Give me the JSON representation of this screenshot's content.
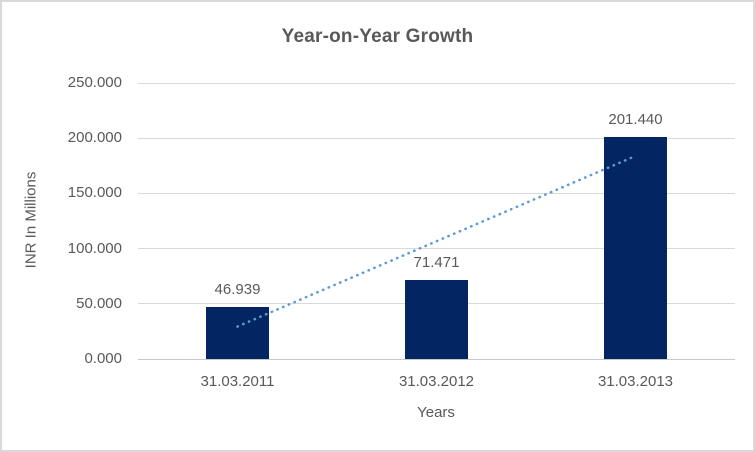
{
  "chart_data": {
    "type": "bar",
    "title": "Year-on-Year Growth",
    "xlabel": "Years",
    "ylabel": "INR In Millions",
    "categories": [
      "31.03.2011",
      "31.03.2012",
      "31.03.2013"
    ],
    "values": [
      46.939,
      71.471,
      201.44
    ],
    "data_labels": [
      "46.939",
      "71.471",
      "201.440"
    ],
    "series_name": "INR In Millions",
    "ylim": [
      0,
      250
    ],
    "y_ticks": [
      {
        "value": 0,
        "label": "0.000"
      },
      {
        "value": 50,
        "label": "50.000"
      },
      {
        "value": 100,
        "label": "100.000"
      },
      {
        "value": 150,
        "label": "150.000"
      },
      {
        "value": 200,
        "label": "200.000"
      },
      {
        "value": 250,
        "label": "250.000"
      }
    ],
    "grid": true,
    "legend": "none",
    "trendline": {
      "type": "linear",
      "style": "dotted",
      "start_value": 29.4,
      "end_value": 183.9,
      "color": "#5b9bd5"
    },
    "colors": {
      "bar": "#032663",
      "gridline": "#d9d9d9",
      "zero_line": "#c8c8c8",
      "text": "#595959",
      "border": "#d9d9d9",
      "background": "#ffffff"
    }
  }
}
